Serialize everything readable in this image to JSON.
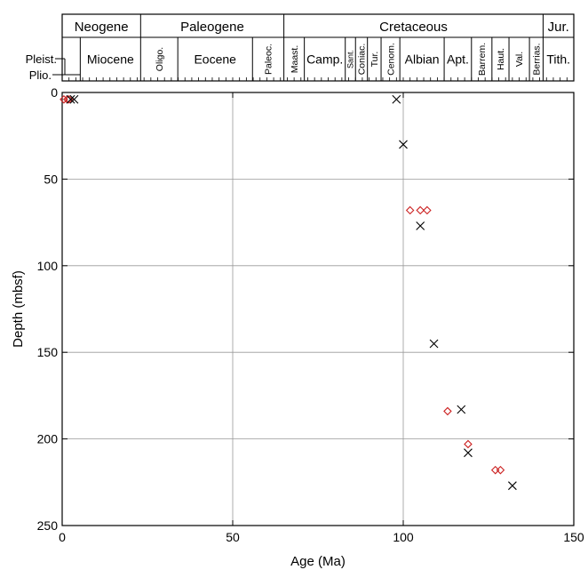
{
  "chart_data": {
    "type": "scatter",
    "xlabel": "Age (Ma)",
    "ylabel": "Depth (mbsf)",
    "xlim": [
      0,
      150
    ],
    "ylim": [
      0,
      250
    ],
    "y_inverted": true,
    "xticks": [
      "0",
      "50",
      "100",
      "150"
    ],
    "yticks": [
      "0",
      "50",
      "100",
      "150",
      "200",
      "250"
    ],
    "grid": true,
    "colors": {
      "diamond": "#cc2222",
      "cross": "#000000"
    },
    "series": [
      {
        "marker": "diamond",
        "x": [
          0.5,
          1.5,
          2.0,
          102,
          105,
          107,
          113,
          119,
          127,
          128.5
        ],
        "y": [
          4,
          4,
          4,
          68,
          68,
          68,
          184,
          203,
          218,
          218
        ]
      },
      {
        "marker": "cross",
        "x": [
          2.5,
          3.5,
          98,
          100,
          105,
          109,
          117,
          119,
          132
        ],
        "y": [
          4,
          4,
          4,
          30,
          77,
          145,
          183,
          208,
          227
        ]
      }
    ]
  },
  "timescale": {
    "periods": [
      {
        "label": "Neogene",
        "start": 0,
        "end": 23
      },
      {
        "label": "Paleogene",
        "start": 23,
        "end": 65
      },
      {
        "label": "Cretaceous",
        "start": 65,
        "end": 141
      },
      {
        "label": "Jur.",
        "start": 141,
        "end": 150
      }
    ],
    "epochs": [
      {
        "label": "Miocene",
        "start": 5.3,
        "end": 23,
        "rotated": false
      },
      {
        "label": "Oligo.",
        "start": 23,
        "end": 33.9,
        "rotated": true
      },
      {
        "label": "Eocene",
        "start": 33.9,
        "end": 55.8,
        "rotated": false
      },
      {
        "label": "Paleoc.",
        "start": 55.8,
        "end": 65,
        "rotated": true
      },
      {
        "label": "Maast.",
        "start": 65,
        "end": 71,
        "rotated": true
      },
      {
        "label": "Camp.",
        "start": 71,
        "end": 83,
        "rotated": false
      },
      {
        "label": "Sant.",
        "start": 83,
        "end": 86,
        "rotated": true
      },
      {
        "label": "Coniac.",
        "start": 86,
        "end": 89.5,
        "rotated": true
      },
      {
        "label": "Tur.",
        "start": 89.5,
        "end": 93.5,
        "rotated": true
      },
      {
        "label": "Cenom.",
        "start": 93.5,
        "end": 99,
        "rotated": true
      },
      {
        "label": "Albian",
        "start": 99,
        "end": 112,
        "rotated": false
      },
      {
        "label": "Apt.",
        "start": 112,
        "end": 120,
        "rotated": false
      },
      {
        "label": "Barrem.",
        "start": 120,
        "end": 126,
        "rotated": true
      },
      {
        "label": "Haut.",
        "start": 126,
        "end": 131,
        "rotated": true
      },
      {
        "label": "Val.",
        "start": 131,
        "end": 137,
        "rotated": true
      },
      {
        "label": "Berrias.",
        "start": 137,
        "end": 141,
        "rotated": true
      },
      {
        "label": "Tith.",
        "start": 141,
        "end": 150,
        "rotated": false
      }
    ],
    "pleist_label": "Pleist.",
    "plio_label": "Plio.",
    "pleist_plio_boundary": 1.8,
    "plio_end": 5.3
  }
}
